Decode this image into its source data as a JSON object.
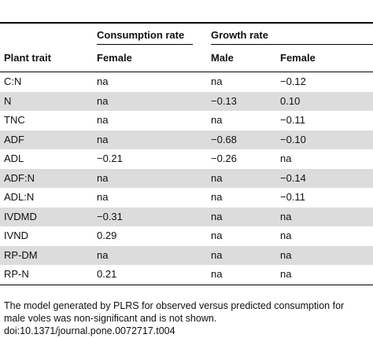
{
  "table": {
    "group_headers": {
      "consumption": "Consumption rate",
      "growth": "Growth rate"
    },
    "columns": [
      "Plant trait",
      "Female",
      "Male",
      "Female"
    ],
    "rows": [
      {
        "trait": "C:N",
        "consumption_female": "na",
        "growth_male": "na",
        "growth_female": "−0.12",
        "shaded": false
      },
      {
        "trait": "N",
        "consumption_female": "na",
        "growth_male": "−0.13",
        "growth_female": "0.10",
        "shaded": true
      },
      {
        "trait": "TNC",
        "consumption_female": "na",
        "growth_male": "na",
        "growth_female": "−0.11",
        "shaded": false
      },
      {
        "trait": "ADF",
        "consumption_female": "na",
        "growth_male": "−0.68",
        "growth_female": "−0.10",
        "shaded": true
      },
      {
        "trait": "ADL",
        "consumption_female": "−0.21",
        "growth_male": "−0.26",
        "growth_female": "na",
        "shaded": false
      },
      {
        "trait": "ADF:N",
        "consumption_female": "na",
        "growth_male": "na",
        "growth_female": "−0.14",
        "shaded": true
      },
      {
        "trait": "ADL:N",
        "consumption_female": "na",
        "growth_male": "na",
        "growth_female": "−0.11",
        "shaded": false
      },
      {
        "trait": "IVDMD",
        "consumption_female": "−0.31",
        "growth_male": "na",
        "growth_female": "na",
        "shaded": true
      },
      {
        "trait": "IVND",
        "consumption_female": "0.29",
        "growth_male": "na",
        "growth_female": "na",
        "shaded": false
      },
      {
        "trait": "RP-DM",
        "consumption_female": "na",
        "growth_male": "na",
        "growth_female": "na",
        "shaded": true
      },
      {
        "trait": "RP-N",
        "consumption_female": "0.21",
        "growth_male": "na",
        "growth_female": "na",
        "shaded": false
      }
    ]
  },
  "footnote": {
    "line1": "The model generated by PLRS for observed versus predicted consumption for",
    "line2": "male voles was non-significant and is not shown.",
    "doi": "doi:10.1371/journal.pone.0072717.t004"
  }
}
